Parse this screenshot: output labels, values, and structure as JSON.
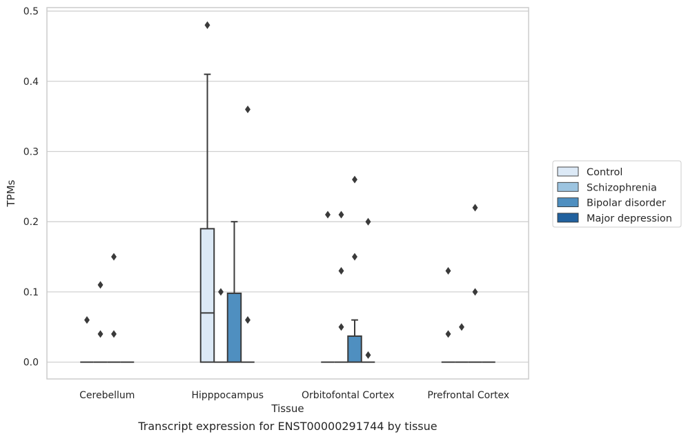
{
  "chart_data": {
    "type": "box",
    "title": "",
    "caption": "Transcript expression for ENST00000291744 by tissue",
    "xlabel": "Tissue",
    "ylabel": "TPMs",
    "ylim": [
      -0.024,
      0.505
    ],
    "yticks": [
      0.0,
      0.1,
      0.2,
      0.3,
      0.4,
      0.5
    ],
    "ytick_labels": [
      "0.0",
      "0.1",
      "0.2",
      "0.3",
      "0.4",
      "0.5"
    ],
    "grid": "horizontal",
    "legend_position": "right",
    "categories": [
      "Cerebellum",
      "Hipppocampus",
      "Orbitofontal Cortex",
      "Prefrontal Cortex"
    ],
    "series": [
      {
        "name": "Control",
        "color": "#dce9f6"
      },
      {
        "name": "Schizophrenia",
        "color": "#9cc4e0"
      },
      {
        "name": "Bipolar disorder",
        "color": "#4f8fc0"
      },
      {
        "name": "Major depression",
        "color": "#21619e"
      }
    ],
    "boxes": [
      {
        "category": "Cerebellum",
        "series": "Control",
        "q1": 0,
        "median": 0,
        "q3": 0,
        "whisker_low": 0,
        "whisker_high": 0,
        "outliers": [
          0.06
        ]
      },
      {
        "category": "Cerebellum",
        "series": "Schizophrenia",
        "q1": 0,
        "median": 0,
        "q3": 0,
        "whisker_low": 0,
        "whisker_high": 0,
        "outliers": [
          0.04,
          0.11
        ]
      },
      {
        "category": "Cerebellum",
        "series": "Bipolar disorder",
        "q1": 0,
        "median": 0,
        "q3": 0,
        "whisker_low": 0,
        "whisker_high": 0,
        "outliers": [
          0.04,
          0.15
        ]
      },
      {
        "category": "Cerebellum",
        "series": "Major depression",
        "q1": 0,
        "median": 0,
        "q3": 0,
        "whisker_low": 0,
        "whisker_high": 0,
        "outliers": []
      },
      {
        "category": "Hipppocampus",
        "series": "Control",
        "q1": 0,
        "median": 0.07,
        "q3": 0.19,
        "whisker_low": 0,
        "whisker_high": 0.41,
        "outliers": [
          0.48
        ]
      },
      {
        "category": "Hipppocampus",
        "series": "Schizophrenia",
        "q1": 0,
        "median": 0,
        "q3": 0,
        "whisker_low": 0,
        "whisker_high": 0,
        "outliers": [
          0.1
        ]
      },
      {
        "category": "Hipppocampus",
        "series": "Bipolar disorder",
        "q1": 0,
        "median": 0,
        "q3": 0.098,
        "whisker_low": 0,
        "whisker_high": 0.2,
        "outliers": []
      },
      {
        "category": "Hipppocampus",
        "series": "Major depression",
        "q1": 0,
        "median": 0,
        "q3": 0,
        "whisker_low": 0,
        "whisker_high": 0,
        "outliers": [
          0.06,
          0.36
        ]
      },
      {
        "category": "Orbitofontal Cortex",
        "series": "Control",
        "q1": 0,
        "median": 0,
        "q3": 0,
        "whisker_low": 0,
        "whisker_high": 0,
        "outliers": [
          0.21
        ]
      },
      {
        "category": "Orbitofontal Cortex",
        "series": "Schizophrenia",
        "q1": 0,
        "median": 0,
        "q3": 0,
        "whisker_low": 0,
        "whisker_high": 0,
        "outliers": [
          0.05,
          0.13,
          0.21
        ]
      },
      {
        "category": "Orbitofontal Cortex",
        "series": "Bipolar disorder",
        "q1": 0,
        "median": 0,
        "q3": 0.037,
        "whisker_low": 0,
        "whisker_high": 0.06,
        "outliers": [
          0.15,
          0.26
        ]
      },
      {
        "category": "Orbitofontal Cortex",
        "series": "Major depression",
        "q1": 0,
        "median": 0,
        "q3": 0,
        "whisker_low": 0,
        "whisker_high": 0,
        "outliers": [
          0.01,
          0.2
        ]
      },
      {
        "category": "Prefrontal Cortex",
        "series": "Control",
        "q1": 0,
        "median": 0,
        "q3": 0,
        "whisker_low": 0,
        "whisker_high": 0,
        "outliers": [
          0.04,
          0.13
        ]
      },
      {
        "category": "Prefrontal Cortex",
        "series": "Schizophrenia",
        "q1": 0,
        "median": 0,
        "q3": 0,
        "whisker_low": 0,
        "whisker_high": 0,
        "outliers": [
          0.05
        ]
      },
      {
        "category": "Prefrontal Cortex",
        "series": "Bipolar disorder",
        "q1": 0,
        "median": 0,
        "q3": 0,
        "whisker_low": 0,
        "whisker_high": 0,
        "outliers": [
          0.1,
          0.22
        ]
      },
      {
        "category": "Prefrontal Cortex",
        "series": "Major depression",
        "q1": 0,
        "median": 0,
        "q3": 0,
        "whisker_low": 0,
        "whisker_high": 0,
        "outliers": []
      }
    ]
  }
}
